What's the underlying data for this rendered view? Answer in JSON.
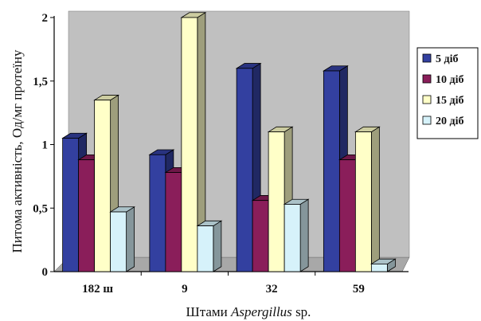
{
  "chart_data": {
    "type": "bar",
    "categories": [
      "182 ш",
      "9",
      "32",
      "59"
    ],
    "series": [
      {
        "name": "5 діб",
        "values": [
          1.05,
          0.92,
          1.6,
          1.58
        ],
        "color": "#3340a0"
      },
      {
        "name": "10 діб",
        "values": [
          0.88,
          0.78,
          0.56,
          0.88
        ],
        "color": "#8a1e5a"
      },
      {
        "name": "15 діб",
        "values": [
          1.35,
          2.0,
          1.1,
          1.1
        ],
        "color": "#ffffc8"
      },
      {
        "name": "20 діб",
        "values": [
          0.47,
          0.36,
          0.53,
          0.06
        ],
        "color": "#d6f2fa"
      }
    ],
    "ylim": [
      0,
      2
    ],
    "yticks": [
      "0",
      "0,5",
      "1",
      "1,5",
      "2"
    ],
    "ytick_values": [
      0,
      0.5,
      1,
      1.5,
      2
    ],
    "ylabel": "Питома активність, Од/мг протеїну",
    "xlabel_prefix": "Штами ",
    "xlabel_italic": "Aspergillus",
    "xlabel_suffix": " sp.",
    "legend_position": "right",
    "plot_background": "#c0c0c0",
    "grid": false
  }
}
